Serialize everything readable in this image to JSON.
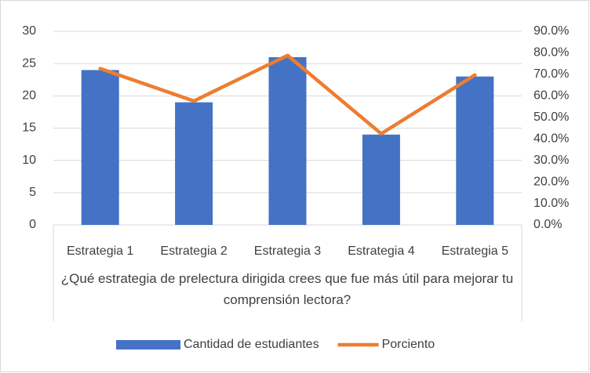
{
  "chart_data": {
    "type": "bar_line",
    "xlabel": "¿Qué estrategia de prelectura dirigida crees que fue más útil para mejorar tu comprensión lectora?",
    "categories": [
      "Estrategia 1",
      "Estrategia 2",
      "Estrategia 3",
      "Estrategia 4",
      "Estrategia 5"
    ],
    "series": [
      {
        "name": "Cantidad de estudiantes",
        "type": "bar",
        "color": "#4472c4",
        "values": [
          24,
          19,
          26,
          14,
          23
        ]
      },
      {
        "name": "Porciento",
        "type": "line",
        "color": "#ed7d31",
        "axis": "y2",
        "values": [
          72.7,
          57.6,
          78.8,
          42.4,
          69.7
        ]
      }
    ],
    "ylim": [
      0,
      30
    ],
    "yticks": [
      0,
      5,
      10,
      15,
      20,
      25,
      30
    ],
    "y2lim": [
      0,
      90
    ],
    "y2ticks": [
      {
        "value": 0,
        "label": "0.0%"
      },
      {
        "value": 10,
        "label": "10.0%"
      },
      {
        "value": 20,
        "label": "20.0%"
      },
      {
        "value": 30,
        "label": "30.0%"
      },
      {
        "value": 40,
        "label": "40.0%"
      },
      {
        "value": 50,
        "label": "50.0%"
      },
      {
        "value": 60,
        "label": "60.0%"
      },
      {
        "value": 70,
        "label": "70.0%"
      },
      {
        "value": 80,
        "label": "80.0%"
      },
      {
        "value": 90,
        "label": "90.0%"
      }
    ],
    "grid": true,
    "legend": "bottom"
  }
}
